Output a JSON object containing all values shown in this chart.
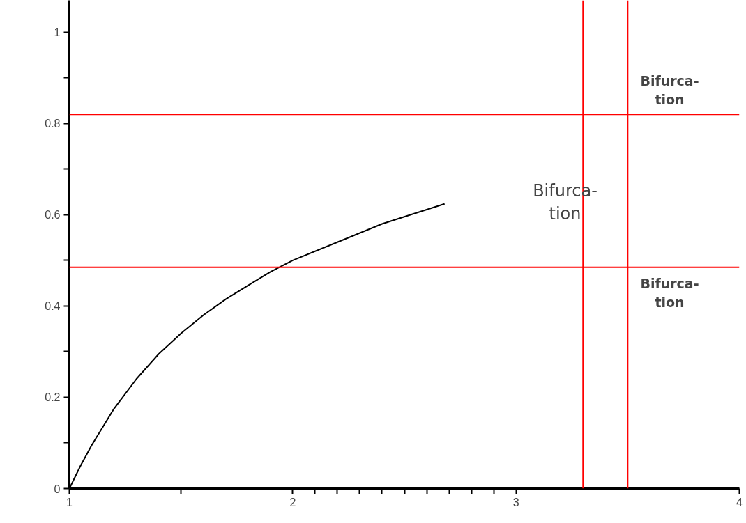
{
  "chart_data": {
    "type": "line",
    "x": [
      1,
      1.05,
      1.1,
      1.2,
      1.3,
      1.4,
      1.5,
      1.6,
      1.7,
      1.8,
      1.9,
      2.0,
      2.2,
      2.4,
      2.68
    ],
    "series": [
      {
        "color": "#000000",
        "values": [
          0,
          0.05,
          0.095,
          0.175,
          0.24,
          0.295,
          0.34,
          0.38,
          0.415,
          0.445,
          0.475,
          0.5,
          0.54,
          0.58,
          0.624
        ]
      }
    ],
    "xlim": [
      1,
      4
    ],
    "ylim": [
      0,
      1.07
    ],
    "xticks": [
      1,
      {
        "value": 1.5,
        "label": null
      },
      2,
      {
        "value": 2.1,
        "label": null
      },
      {
        "value": 2.2,
        "label": null
      },
      {
        "value": 2.3,
        "label": null
      },
      {
        "value": 2.4,
        "label": null
      },
      {
        "value": 2.5,
        "label": null
      },
      {
        "value": 2.6,
        "label": null
      },
      {
        "value": 2.7,
        "label": null
      },
      {
        "value": 2.8,
        "label": null
      },
      {
        "value": 2.9,
        "label": null
      },
      3,
      4
    ],
    "yticks": [
      0,
      {
        "value": 0.1,
        "label": null
      },
      0.2,
      {
        "value": 0.3,
        "label": null
      },
      0.4,
      {
        "value": 0.5,
        "label": null
      },
      0.6,
      {
        "value": 0.7,
        "label": null
      },
      0.8,
      {
        "value": 0.9,
        "label": null
      },
      1
    ],
    "ref_lines": [
      {
        "axis": "y",
        "value": 0.82,
        "color": "#ff0000"
      },
      {
        "axis": "y",
        "value": 0.485,
        "color": "#ff0000"
      },
      {
        "axis": "x",
        "value": 3.3,
        "color": "#ff0000"
      },
      {
        "axis": "x",
        "value": 3.5,
        "color": "#ff0000"
      }
    ],
    "annotations": [
      "Bifurca-\ntion",
      "Bifurca-\ntion",
      "Bifurca-\ntion"
    ],
    "grid": false,
    "marker": "none",
    "line_style": "solid"
  }
}
